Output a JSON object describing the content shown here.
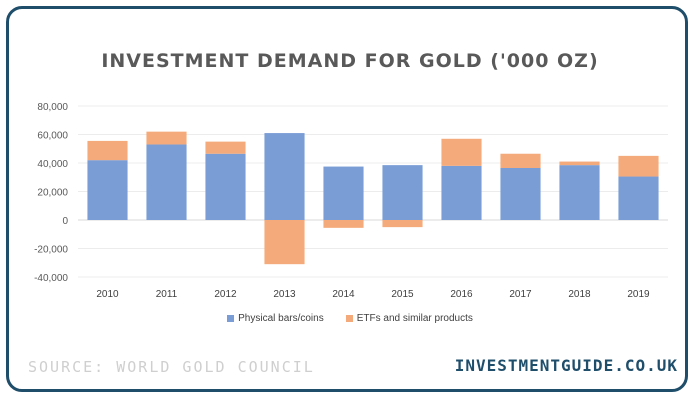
{
  "footer": {
    "source": "SOURCE: WORLD GOLD COUNCIL",
    "brand": "INVESTMENTGUIDE.CO.UK"
  },
  "colors": {
    "border": "#1f4e6b",
    "physical": "#7a9dd6",
    "etf": "#f4aa7a"
  },
  "chart_data": {
    "type": "bar",
    "stacked": true,
    "title": "INVESTMENT DEMAND FOR GOLD ('000 OZ)",
    "categories": [
      "2010",
      "2011",
      "2012",
      "2013",
      "2014",
      "2015",
      "2016",
      "2017",
      "2018",
      "2019"
    ],
    "series": [
      {
        "name": "Physical bars/coins",
        "color": "#7a9dd6",
        "values": [
          42000,
          53000,
          46500,
          61000,
          37500,
          38500,
          38000,
          36500,
          38500,
          30500
        ]
      },
      {
        "name": "ETFs and similar products",
        "color": "#f4aa7a",
        "values": [
          13500,
          9000,
          8500,
          -31000,
          -5500,
          -5000,
          19000,
          10000,
          2500,
          14500
        ]
      }
    ],
    "ylim": [
      -40000,
      80000
    ],
    "yticks": [
      "80,000",
      "60,000",
      "40,000",
      "20,000",
      "0",
      "-20,000",
      "-40,000"
    ],
    "ytick_values": [
      80000,
      60000,
      40000,
      20000,
      0,
      -20000,
      -40000
    ],
    "grid": true,
    "legend_position": "bottom"
  }
}
